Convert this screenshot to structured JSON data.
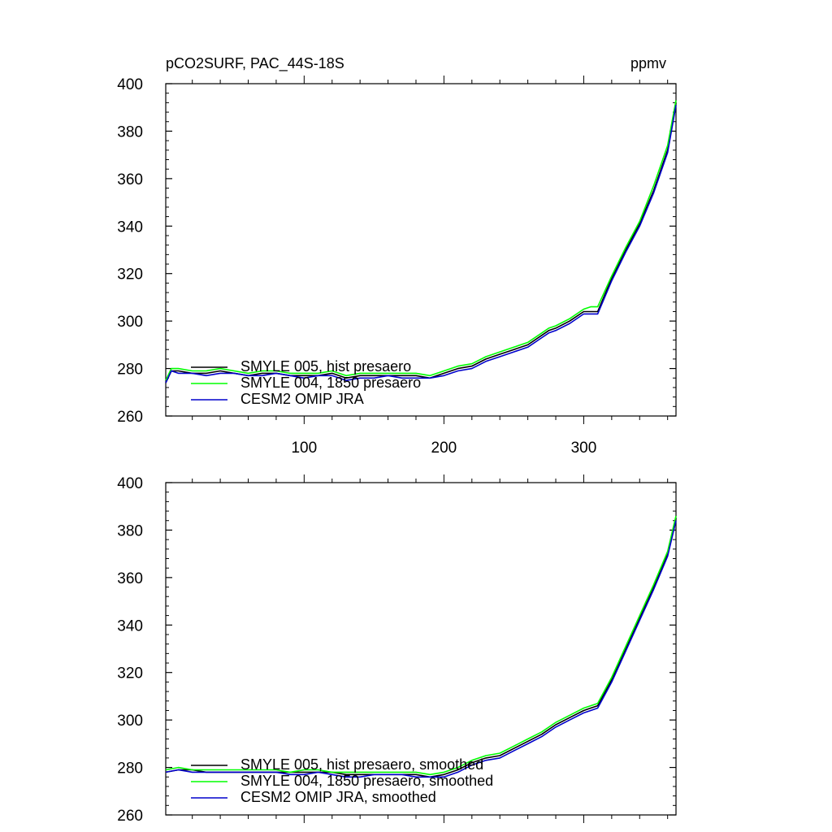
{
  "header": {
    "left_title": "pCO2SURF, PAC_44S-18S",
    "right_title": "ppmv"
  },
  "colors": {
    "black": "#000000",
    "green": "#00ff00",
    "blue": "#0000cc"
  },
  "chart_data": [
    {
      "type": "line",
      "title": "pCO2SURF, PAC_44S-18S",
      "unit": "ppmv",
      "xlim": [
        1,
        366
      ],
      "ylim": [
        260,
        400
      ],
      "x_ticks": [
        100,
        200,
        300
      ],
      "x_tick_labels": [
        "100",
        "200",
        "300"
      ],
      "y_ticks": [
        260,
        280,
        300,
        320,
        340,
        360,
        380,
        400
      ],
      "y_tick_labels": [
        "260",
        "280",
        "300",
        "320",
        "340",
        "360",
        "380",
        "400"
      ],
      "legend_placement": "lower-left",
      "x": [
        1,
        5,
        10,
        20,
        30,
        40,
        50,
        60,
        70,
        80,
        90,
        100,
        110,
        120,
        130,
        140,
        150,
        160,
        170,
        180,
        190,
        200,
        210,
        220,
        230,
        240,
        250,
        260,
        270,
        275,
        280,
        290,
        300,
        305,
        310,
        320,
        330,
        340,
        350,
        360,
        366
      ],
      "series": [
        {
          "name": "SMYLE 005, hist presaero",
          "color": "#000000",
          "values": [
            274,
            279,
            279,
            278,
            278,
            279,
            278,
            277,
            278,
            278,
            277,
            277,
            277,
            278,
            276,
            277,
            277,
            277,
            277,
            277,
            276,
            278,
            280,
            281,
            284,
            286,
            288,
            290,
            294,
            296,
            297,
            300,
            304,
            304,
            304,
            318,
            330,
            341,
            355,
            372,
            392
          ]
        },
        {
          "name": "SMYLE 004, 1850 presaero",
          "color": "#00ff00",
          "values": [
            275,
            280,
            280,
            279,
            279,
            280,
            279,
            278,
            279,
            279,
            278,
            278,
            278,
            279,
            277,
            278,
            278,
            278,
            278,
            278,
            277,
            279,
            281,
            282,
            285,
            287,
            289,
            291,
            295,
            297,
            298,
            301,
            305,
            306,
            306,
            319,
            331,
            342,
            357,
            374,
            393
          ]
        },
        {
          "name": "CESM2 OMIP JRA",
          "color": "#0000cc",
          "values": [
            274,
            279,
            278,
            278,
            277,
            278,
            278,
            277,
            277,
            278,
            277,
            276,
            277,
            277,
            275,
            276,
            276,
            277,
            276,
            276,
            276,
            277,
            279,
            280,
            283,
            285,
            287,
            289,
            293,
            295,
            296,
            299,
            303,
            303,
            303,
            317,
            329,
            340,
            354,
            371,
            391
          ]
        }
      ]
    },
    {
      "type": "line",
      "xlim": [
        1,
        366
      ],
      "ylim": [
        260,
        400
      ],
      "y_ticks": [
        260,
        280,
        300,
        320,
        340,
        360,
        380,
        400
      ],
      "y_tick_labels": [
        "260",
        "280",
        "300",
        "320",
        "340",
        "360",
        "380",
        "400"
      ],
      "legend_placement": "lower-left",
      "x": [
        1,
        10,
        20,
        30,
        40,
        50,
        60,
        70,
        80,
        90,
        100,
        110,
        120,
        130,
        140,
        150,
        160,
        170,
        180,
        190,
        200,
        210,
        220,
        230,
        240,
        250,
        260,
        270,
        280,
        290,
        300,
        305,
        310,
        320,
        330,
        340,
        350,
        360,
        366
      ],
      "series": [
        {
          "name": "SMYLE 005, hist presaero, smoothed",
          "color": "#000000",
          "values": [
            278,
            279,
            279,
            278,
            278,
            278,
            278,
            278,
            278,
            278,
            278,
            278,
            278,
            277,
            277,
            277,
            277,
            277,
            277,
            276,
            277,
            279,
            282,
            284,
            285,
            288,
            291,
            294,
            298,
            301,
            304,
            305,
            306,
            317,
            330,
            343,
            356,
            370,
            385
          ]
        },
        {
          "name": "SMYLE 004, 1850 presaero, smoothed",
          "color": "#00ff00",
          "values": [
            279,
            280,
            279,
            279,
            279,
            279,
            279,
            279,
            279,
            278,
            279,
            279,
            278,
            278,
            278,
            278,
            278,
            278,
            278,
            277,
            278,
            280,
            283,
            285,
            286,
            289,
            292,
            295,
            299,
            302,
            305,
            306,
            307,
            318,
            331,
            344,
            357,
            371,
            386
          ]
        },
        {
          "name": "CESM2 OMIP JRA, smoothed",
          "color": "#0000cc",
          "values": [
            278,
            279,
            278,
            278,
            278,
            278,
            278,
            278,
            278,
            277,
            277,
            278,
            277,
            276,
            276,
            277,
            277,
            277,
            276,
            276,
            276,
            278,
            281,
            283,
            284,
            287,
            290,
            293,
            297,
            300,
            303,
            304,
            305,
            316,
            329,
            342,
            355,
            369,
            384
          ]
        }
      ]
    }
  ]
}
